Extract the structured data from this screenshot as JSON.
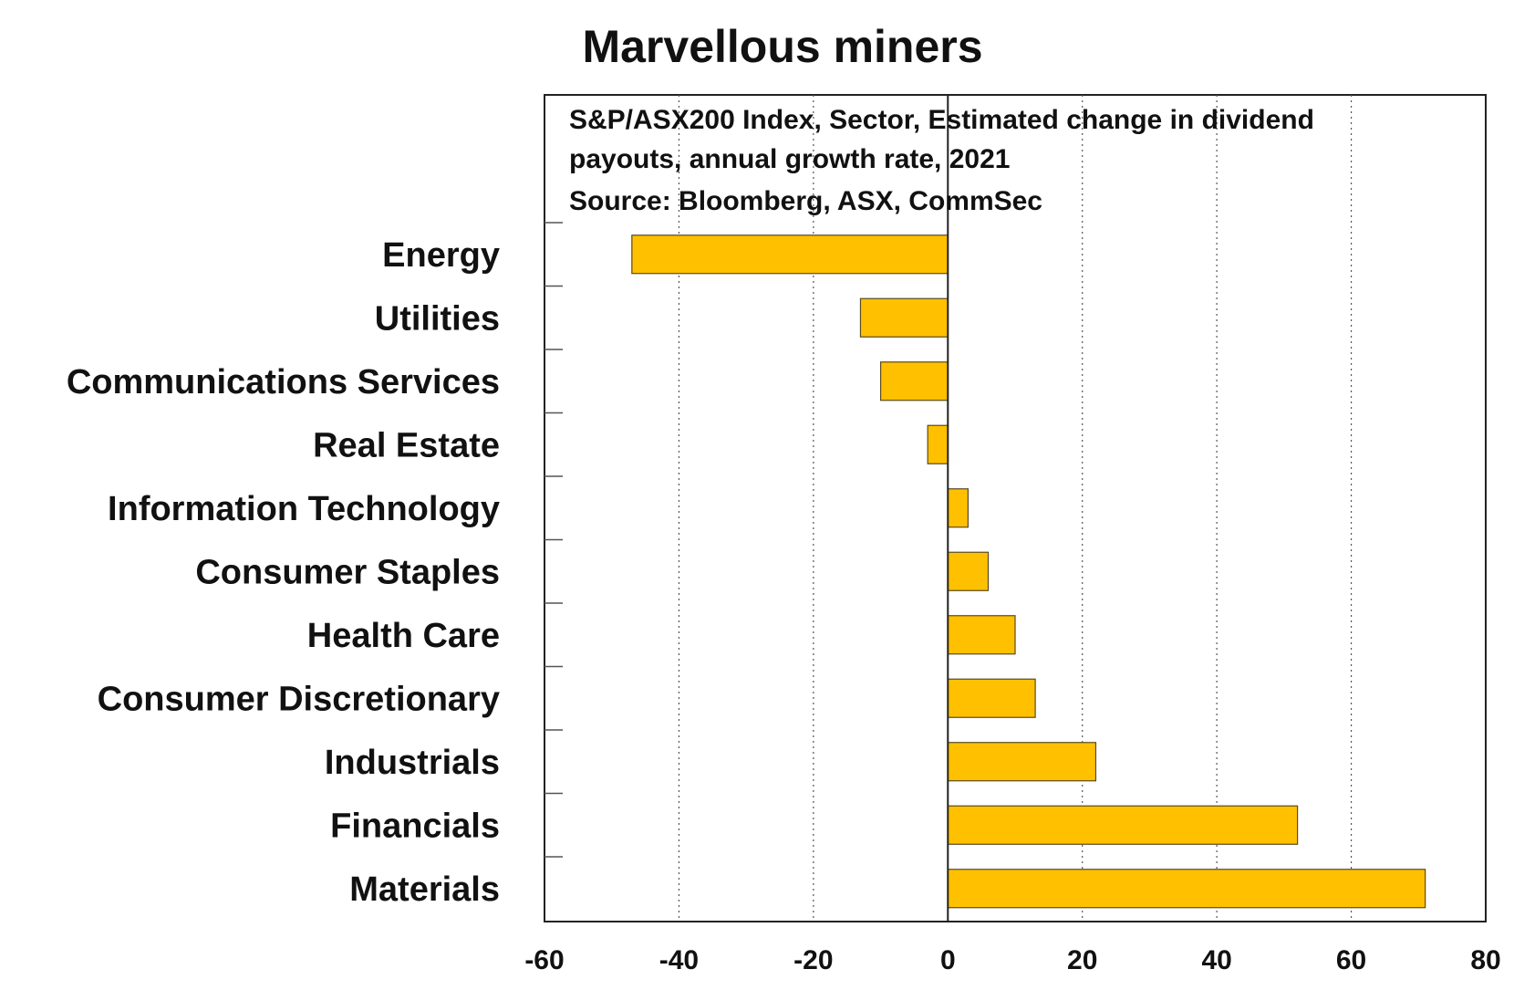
{
  "chart_data": {
    "type": "bar",
    "orientation": "horizontal",
    "title": "Marvellous miners",
    "subtitle_lines": [
      "S&P/ASX200 Index, Sector, Estimated change in dividend",
      "payouts, annual growth rate, 2021",
      "Source: Bloomberg, ASX, CommSec"
    ],
    "categories": [
      "Energy",
      "Utilities",
      "Communications Services",
      "Real Estate",
      "Information Technology",
      "Consumer Staples",
      "Health Care",
      "Consumer Discretionary",
      "Industrials",
      "Financials",
      "Materials"
    ],
    "values": [
      -47,
      -13,
      -10,
      -3,
      3,
      6,
      10,
      13,
      22,
      52,
      71
    ],
    "xlim": [
      -60,
      80
    ],
    "xticks": [
      -60,
      -40,
      -20,
      0,
      20,
      40,
      60,
      80
    ],
    "tick_labels": [
      "-60",
      "-40",
      "-20",
      "0",
      "20",
      "40",
      "60",
      "80"
    ],
    "xlabel": "",
    "ylabel": "",
    "grid": "vertical dotted",
    "bar_color": "#FFC000",
    "bar_edge_color": "#5a4a20"
  }
}
